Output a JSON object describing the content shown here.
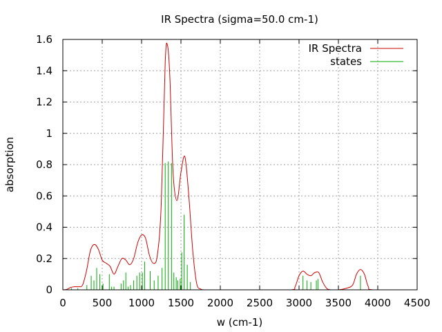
{
  "chart_data": {
    "type": "line",
    "title": "IR Spectra (sigma=50.0 cm-1)",
    "xlabel": "w (cm-1)",
    "ylabel": "absorption",
    "xlim": [
      0,
      4500
    ],
    "ylim": [
      0,
      1.6
    ],
    "x_ticks": [
      0,
      500,
      1000,
      1500,
      2000,
      2500,
      3000,
      3500,
      4000,
      4500
    ],
    "x_tick_labels": [
      "0",
      "500",
      "1000",
      "1500",
      "2000",
      "2500",
      "3000",
      "3500",
      "4000",
      "4500"
    ],
    "y_ticks": [
      0,
      0.2,
      0.4,
      0.6,
      0.8,
      1.0,
      1.2,
      1.4,
      1.6
    ],
    "y_tick_labels": [
      "0",
      "0.2",
      "0.4",
      "0.6",
      "0.8",
      "1",
      "1.2",
      "1.4",
      "1.6"
    ],
    "grid": true,
    "legend_position": "top-right",
    "series": [
      {
        "name": "IR Spectra",
        "kind": "line",
        "color": "#cc0000",
        "points": [
          [
            0,
            0
          ],
          [
            50,
            0.003
          ],
          [
            100,
            0.015
          ],
          [
            150,
            0.02
          ],
          [
            200,
            0.02
          ],
          [
            250,
            0.03
          ],
          [
            300,
            0.12
          ],
          [
            350,
            0.25
          ],
          [
            400,
            0.29
          ],
          [
            450,
            0.26
          ],
          [
            500,
            0.19
          ],
          [
            550,
            0.17
          ],
          [
            600,
            0.15
          ],
          [
            650,
            0.1
          ],
          [
            700,
            0.15
          ],
          [
            750,
            0.2
          ],
          [
            800,
            0.19
          ],
          [
            850,
            0.16
          ],
          [
            900,
            0.2
          ],
          [
            950,
            0.3
          ],
          [
            1000,
            0.35
          ],
          [
            1050,
            0.33
          ],
          [
            1100,
            0.22
          ],
          [
            1150,
            0.17
          ],
          [
            1200,
            0.22
          ],
          [
            1250,
            0.55
          ],
          [
            1300,
            1.45
          ],
          [
            1330,
            1.56
          ],
          [
            1360,
            1.35
          ],
          [
            1400,
            0.75
          ],
          [
            1450,
            0.57
          ],
          [
            1500,
            0.75
          ],
          [
            1550,
            0.85
          ],
          [
            1600,
            0.6
          ],
          [
            1650,
            0.25
          ],
          [
            1700,
            0.04
          ],
          [
            1750,
            0.005
          ],
          [
            1800,
            0
          ],
          [
            2000,
            0
          ],
          [
            2500,
            0
          ],
          [
            2900,
            0
          ],
          [
            2950,
            0.02
          ],
          [
            3000,
            0.09
          ],
          [
            3050,
            0.12
          ],
          [
            3100,
            0.1
          ],
          [
            3150,
            0.09
          ],
          [
            3200,
            0.11
          ],
          [
            3250,
            0.11
          ],
          [
            3300,
            0.05
          ],
          [
            3350,
            0.01
          ],
          [
            3400,
            0
          ],
          [
            3500,
            0
          ],
          [
            3600,
            0.01
          ],
          [
            3680,
            0.03
          ],
          [
            3730,
            0.1
          ],
          [
            3780,
            0.13
          ],
          [
            3830,
            0.1
          ],
          [
            3880,
            0.02
          ],
          [
            3950,
            0
          ],
          [
            4500,
            0
          ]
        ]
      },
      {
        "name": "states",
        "kind": "impulses",
        "color": "#00aa00",
        "x": [
          55,
          110,
          190,
          305,
          360,
          395,
          430,
          470,
          510,
          590,
          620,
          650,
          740,
          770,
          800,
          830,
          860,
          900,
          940,
          975,
          1010,
          1040,
          1110,
          1160,
          1210,
          1260,
          1300,
          1340,
          1380,
          1410,
          1440,
          1460,
          1490,
          1510,
          1540,
          1580,
          1620,
          3050,
          3100,
          3150,
          3220,
          3240,
          3780
        ],
        "values": [
          0.005,
          0.01,
          0.01,
          0.03,
          0.09,
          0.06,
          0.14,
          0.1,
          0.04,
          0.1,
          0.02,
          0.02,
          0.04,
          0.06,
          0.11,
          0.02,
          0.03,
          0.06,
          0.09,
          0.11,
          0.11,
          0.18,
          0.12,
          0.06,
          0.09,
          0.14,
          0.81,
          0.82,
          0.81,
          0.11,
          0.08,
          0.06,
          0.07,
          0.24,
          0.48,
          0.16,
          0.05,
          0.09,
          0.06,
          0.05,
          0.06,
          0.07,
          0.09
        ]
      }
    ]
  }
}
